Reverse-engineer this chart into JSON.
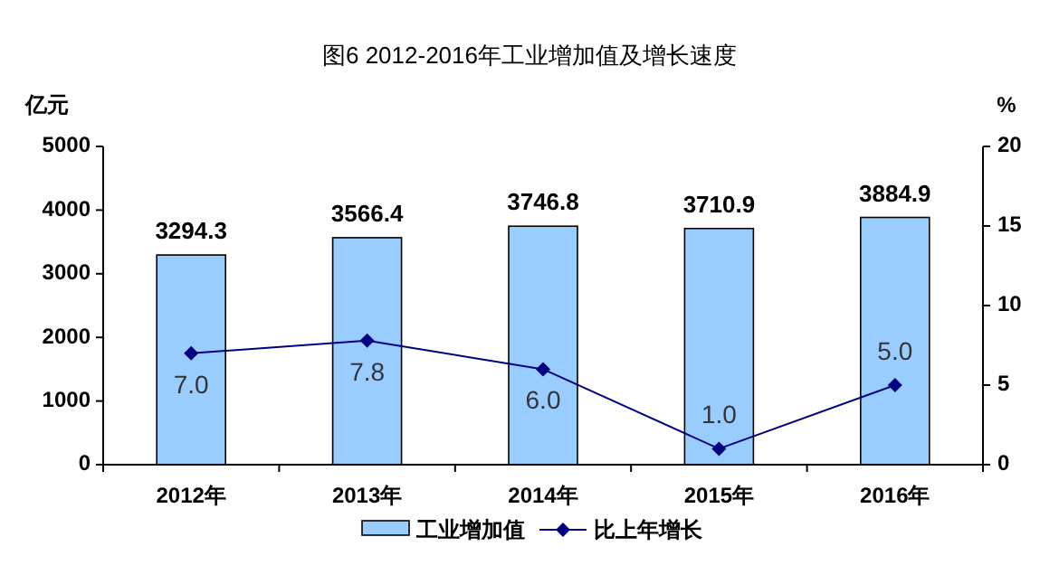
{
  "chart_data": {
    "type": "bar",
    "title": "图6 2012-2016年工业增加值及增长速度",
    "ylabel": "亿元",
    "y2label": "%",
    "categories": [
      "2012年",
      "2013年",
      "2014年",
      "2015年",
      "2016年"
    ],
    "series": [
      {
        "name": "工业增加值",
        "color": "#99ccff",
        "values": [
          3294.3,
          3566.4,
          3746.8,
          3710.9,
          3884.9
        ]
      },
      {
        "name": "比上年增长",
        "type": "line",
        "axis": "y2",
        "color": "#000080",
        "marker": "diamond",
        "values": [
          7.0,
          7.8,
          6.0,
          1.0,
          5.0
        ],
        "value_labels": [
          "7.0",
          "7.8",
          "6.0",
          "1.0",
          "5.0"
        ]
      }
    ],
    "data_labels": true,
    "ylim": [
      0,
      5000
    ],
    "yticks": [
      0,
      1000,
      2000,
      3000,
      4000,
      5000
    ],
    "y2lim": [
      0,
      20
    ],
    "y2ticks": [
      0,
      5,
      10,
      15,
      20
    ],
    "grid": false,
    "legend": "bottom"
  }
}
